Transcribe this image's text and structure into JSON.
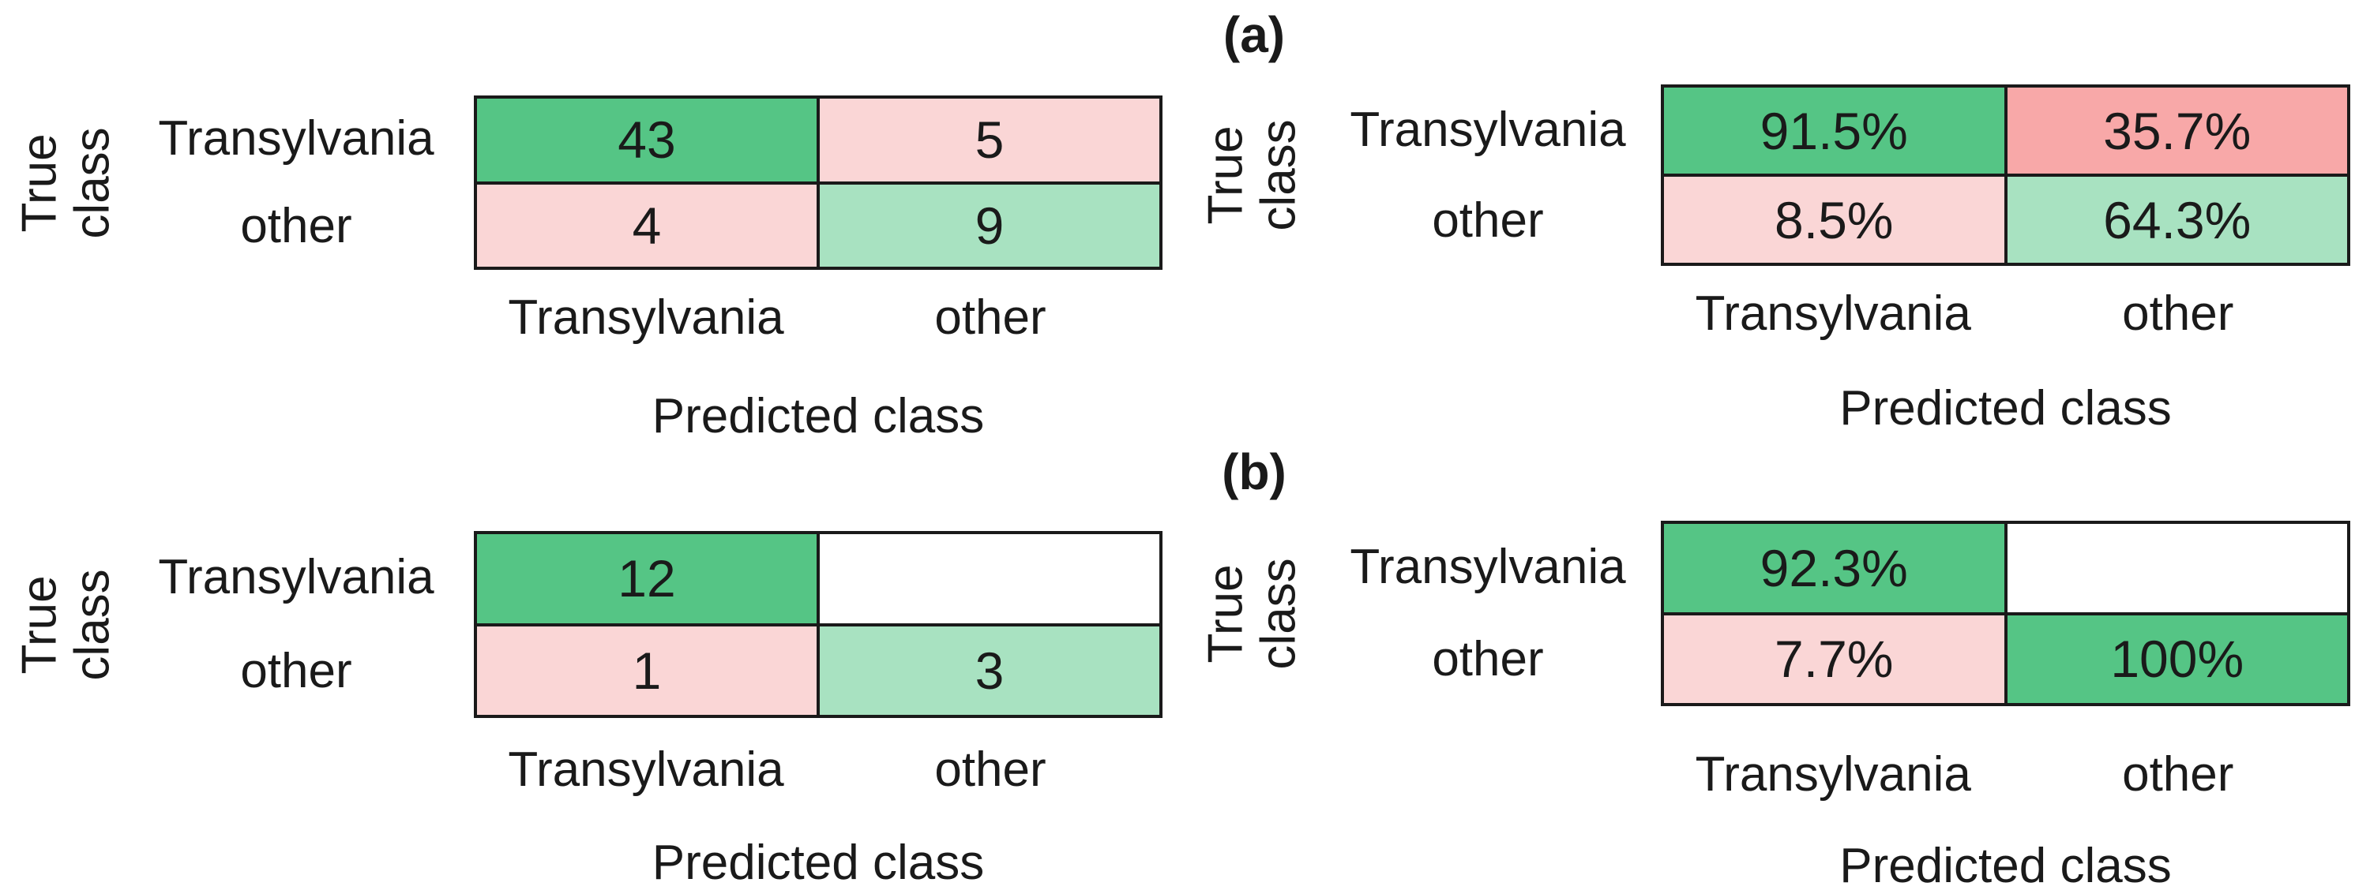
{
  "figure": {
    "panel_a_label": "(a)",
    "panel_b_label": "(b)"
  },
  "colors": {
    "correct_strong_green": "#55C585",
    "correct_light_green": "#A8E2C1",
    "error_light_pink": "#FAD6D6",
    "error_strong_salmon": "#F8A8A8",
    "empty_cell": "#FFFFFF",
    "border": "#1A1A1A",
    "text": "#1A1A1A"
  },
  "chart_data": [
    {
      "type": "heatmap",
      "panel": "a",
      "position": "left",
      "description": "Confusion matrix (a), absolute counts",
      "ylabel": "True class",
      "ylabel_lines": [
        "True",
        "class"
      ],
      "xlabel": "Predicted class",
      "rows": [
        "Transylvania",
        "other"
      ],
      "cols": [
        "Transylvania",
        "other"
      ],
      "values": [
        [
          43,
          5
        ],
        [
          4,
          9
        ]
      ],
      "cells": [
        {
          "text": "43",
          "bg": "#55C585"
        },
        {
          "text": "5",
          "bg": "#FAD6D6"
        },
        {
          "text": "4",
          "bg": "#FAD6D6"
        },
        {
          "text": "9",
          "bg": "#A8E2C1"
        }
      ]
    },
    {
      "type": "heatmap",
      "panel": "a",
      "position": "right",
      "description": "Confusion matrix (a), column-normalized percentages",
      "ylabel": "True class",
      "ylabel_lines": [
        "True",
        "class"
      ],
      "xlabel": "Predicted class",
      "rows": [
        "Transylvania",
        "other"
      ],
      "cols": [
        "Transylvania",
        "other"
      ],
      "values": [
        [
          91.5,
          35.7
        ],
        [
          8.5,
          64.3
        ]
      ],
      "cells": [
        {
          "text": "91.5%",
          "bg": "#55C585"
        },
        {
          "text": "35.7%",
          "bg": "#F8A8A8"
        },
        {
          "text": "8.5%",
          "bg": "#FAD6D6"
        },
        {
          "text": "64.3%",
          "bg": "#A8E2C1"
        }
      ]
    },
    {
      "type": "heatmap",
      "panel": "b",
      "position": "left",
      "description": "Confusion matrix (b), absolute counts",
      "ylabel": "True class",
      "ylabel_lines": [
        "True",
        "class"
      ],
      "xlabel": "Predicted class",
      "rows": [
        "Transylvania",
        "other"
      ],
      "cols": [
        "Transylvania",
        "other"
      ],
      "values": [
        [
          12,
          null
        ],
        [
          1,
          3
        ]
      ],
      "cells": [
        {
          "text": "12",
          "bg": "#55C585"
        },
        {
          "text": "",
          "bg": "#FFFFFF"
        },
        {
          "text": "1",
          "bg": "#FAD6D6"
        },
        {
          "text": "3",
          "bg": "#A8E2C1"
        }
      ]
    },
    {
      "type": "heatmap",
      "panel": "b",
      "position": "right",
      "description": "Confusion matrix (b), column-normalized percentages",
      "ylabel": "True class",
      "ylabel_lines": [
        "True",
        "class"
      ],
      "xlabel": "Predicted class",
      "rows": [
        "Transylvania",
        "other"
      ],
      "cols": [
        "Transylvania",
        "other"
      ],
      "values": [
        [
          92.3,
          null
        ],
        [
          7.7,
          100
        ]
      ],
      "cells": [
        {
          "text": "92.3%",
          "bg": "#55C585"
        },
        {
          "text": "",
          "bg": "#FFFFFF"
        },
        {
          "text": "7.7%",
          "bg": "#FAD6D6"
        },
        {
          "text": "100%",
          "bg": "#55C585"
        }
      ]
    }
  ]
}
